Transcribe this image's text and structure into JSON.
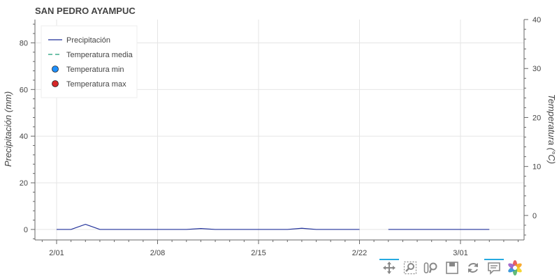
{
  "chart_data": {
    "type": "line",
    "title": "SAN PEDRO AYAMPUC",
    "ylabel": "Precipitación (mm)",
    "y2label": "Temperatura (°C)",
    "x_ticks": [
      "2/01",
      "2/08",
      "2/15",
      "2/22",
      "3/01"
    ],
    "y_ticks": [
      0,
      20,
      40,
      60,
      80
    ],
    "y2_ticks": [
      0,
      10,
      20,
      30,
      40
    ],
    "ylim": [
      -4.5,
      90
    ],
    "y2lim": [
      -5,
      40
    ],
    "grid": true,
    "legend_position": "top-left",
    "legend": [
      {
        "label": "Precipitación",
        "kind": "line",
        "color": "#1f2f99"
      },
      {
        "label": "Temperatura media",
        "kind": "dashed",
        "color": "#1a9e77"
      },
      {
        "label": "Temperatura min",
        "kind": "circle",
        "color": "#1e90ff"
      },
      {
        "label": "Temperatura max",
        "kind": "circle",
        "color": "#d62728"
      }
    ],
    "series": [
      {
        "name": "Precipitación",
        "color": "#1f2f99",
        "x": [
          "2/01",
          "2/02",
          "2/03",
          "2/04",
          "2/05",
          "2/06",
          "2/07",
          "2/08",
          "2/09",
          "2/10",
          "2/11",
          "2/12",
          "2/13",
          "2/14",
          "2/15",
          "2/16",
          "2/17",
          "2/18",
          "2/19",
          "2/20",
          "2/21",
          "2/22",
          "2/23",
          "2/24",
          "2/25",
          "2/26",
          "2/27",
          "2/28",
          "3/01",
          "3/02",
          "3/03"
        ],
        "values": [
          0,
          0,
          2.2,
          0,
          0,
          0,
          0,
          0,
          0,
          0,
          0.4,
          0,
          0,
          0,
          0,
          0,
          0,
          0.5,
          0,
          0,
          0,
          0,
          null,
          0,
          0,
          0,
          0,
          0,
          0,
          0,
          0
        ]
      }
    ]
  },
  "toolbar": {
    "icons": [
      "pan-icon",
      "box-zoom-icon",
      "wheel-zoom-icon",
      "save-icon",
      "reset-icon",
      "hover-icon",
      "bokeh-logo-icon"
    ]
  }
}
